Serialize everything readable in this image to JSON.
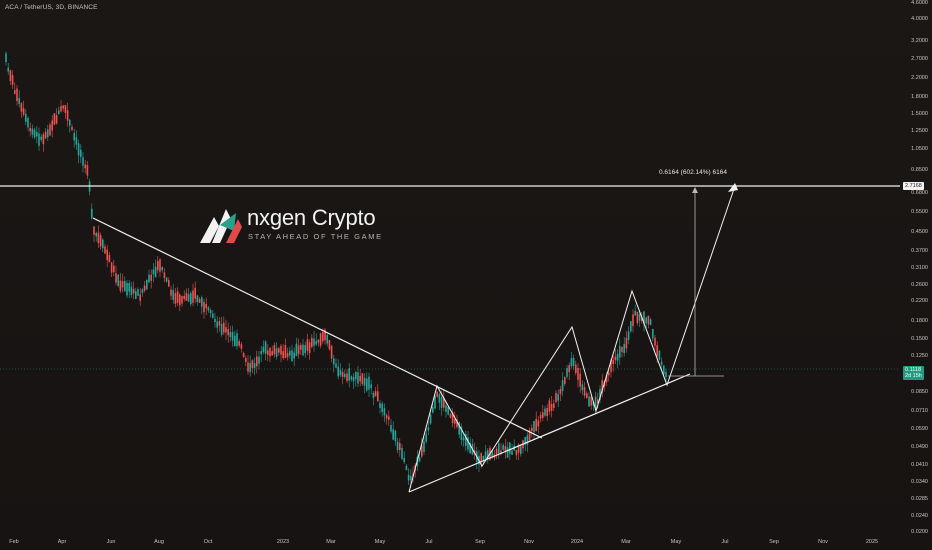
{
  "symbol_title": "ACA / TetherUS, 3D, BINANCE",
  "price_axis": [
    "4.6000",
    "4.0000",
    "3.2000",
    "2.7000",
    "2.2000",
    "1.8000",
    "1.5000",
    "1.2500",
    "1.0500",
    "0.8500",
    "0.6800",
    "0.5500",
    "0.4500",
    "0.3700",
    "0.3100",
    "0.2600",
    "0.2200",
    "0.1800",
    "0.1500",
    "0.1250",
    "0.1050",
    "0.0850",
    "0.0710",
    "0.0590",
    "0.0490",
    "0.0410",
    "0.0340",
    "0.0285",
    "0.0240",
    "0.0200"
  ],
  "time_axis": [
    "Feb",
    "Apr",
    "Jun",
    "Aug",
    "Oct",
    "2023",
    "Mar",
    "May",
    "Jul",
    "Sep",
    "Nov",
    "2024",
    "Mar",
    "May",
    "Jul",
    "Sep",
    "Nov",
    "2025"
  ],
  "price_tags": {
    "target": "2.7168",
    "current": "0.1118",
    "countdown": "2d 15h"
  },
  "measure_label": "0.6164 (602.14%) 6164",
  "logo": {
    "name": "nxgen Crypto",
    "tagline": "STAY AHEAD OF THE GAME"
  },
  "colors": {
    "up": "#26a69a",
    "down": "#ef5350",
    "background": "#161311",
    "drawing": "#ffffff"
  },
  "chart_data": {
    "type": "candlestick",
    "symbol": "ACA / TetherUS",
    "timeframe": "3D",
    "exchange": "BINANCE",
    "scale": "log",
    "y_ticks": [
      4.6,
      4.0,
      3.2,
      2.7,
      2.2,
      1.8,
      1.5,
      1.25,
      1.05,
      0.85,
      0.68,
      0.55,
      0.45,
      0.37,
      0.31,
      0.26,
      0.22,
      0.18,
      0.15,
      0.125,
      0.105,
      0.085,
      0.071,
      0.059,
      0.049,
      0.041,
      0.034,
      0.0285,
      0.024,
      0.02
    ],
    "x_ticks": [
      "Feb",
      "Apr",
      "Jun",
      "Aug",
      "Oct",
      "2023",
      "Mar",
      "May",
      "Jul",
      "Sep",
      "Nov",
      "2024",
      "Mar",
      "May",
      "Jul",
      "Sep",
      "Nov",
      "2025"
    ],
    "horizontal_levels": [
      2.7168
    ],
    "current_price": 0.1118,
    "measure_change": "0.6164 (602.14%)",
    "trendlines": "descending resistance from Jun 2022 to Nov 2023; ascending support from Jun 2023 to May 2024; projected zigzag path up to target 2.7168 by Jul 2024"
  }
}
